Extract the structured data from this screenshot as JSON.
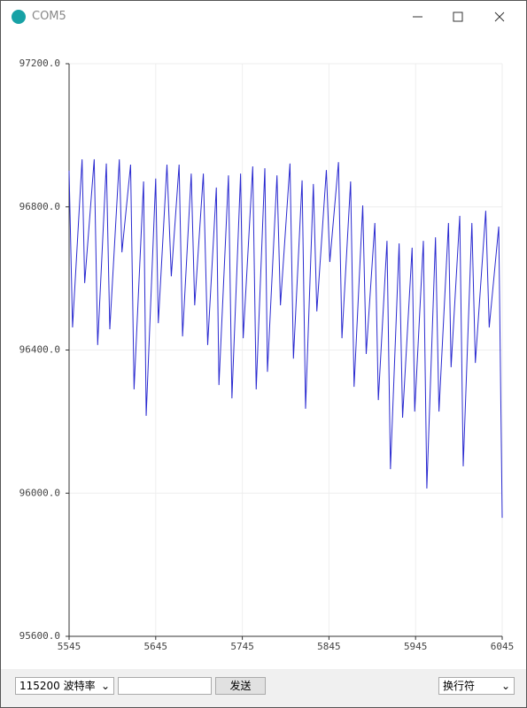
{
  "window": {
    "title": "COM5"
  },
  "chart_data": {
    "type": "line",
    "color": "#2a2ad0",
    "grid": true,
    "xlim": [
      5545,
      6045
    ],
    "xticks": [
      5545,
      5645,
      5745,
      5845,
      5945,
      6045
    ],
    "ylim": [
      95600,
      97200
    ],
    "yticks": [
      {
        "value": 95600,
        "label": "95600.0"
      },
      {
        "value": 96000,
        "label": "96000.0"
      },
      {
        "value": 96400,
        "label": "96400.0"
      },
      {
        "value": 96800,
        "label": "96800.0"
      },
      {
        "value": 97200,
        "label": "97200.0"
      }
    ],
    "x": [
      5545,
      5549,
      5560,
      5563,
      5574,
      5578,
      5588,
      5592,
      5603,
      5606,
      5616,
      5620,
      5631,
      5634,
      5645,
      5648,
      5658,
      5663,
      5672,
      5676,
      5686,
      5690,
      5700,
      5705,
      5715,
      5718,
      5729,
      5733,
      5743,
      5746,
      5757,
      5761,
      5771,
      5774,
      5785,
      5789,
      5800,
      5804,
      5814,
      5818,
      5827,
      5831,
      5842,
      5846,
      5856,
      5860,
      5870,
      5874,
      5884,
      5888,
      5898,
      5902,
      5912,
      5916,
      5926,
      5930,
      5941,
      5944,
      5954,
      5958,
      5968,
      5972,
      5983,
      5986,
      5996,
      6000,
      6010,
      6014,
      6026,
      6030,
      6041,
      6045
    ],
    "values": [
      96901,
      96463,
      96933,
      96587,
      96933,
      96414,
      96921,
      96458,
      96933,
      96673,
      96918,
      96290,
      96871,
      96216,
      96879,
      96475,
      96918,
      96606,
      96918,
      96438,
      96893,
      96525,
      96893,
      96414,
      96854,
      96302,
      96888,
      96265,
      96893,
      96433,
      96913,
      96290,
      96908,
      96339,
      96888,
      96525,
      96921,
      96376,
      96874,
      96236,
      96864,
      96508,
      96903,
      96646,
      96925,
      96433,
      96871,
      96297,
      96804,
      96389,
      96755,
      96260,
      96705,
      96067,
      96698,
      96211,
      96686,
      96228,
      96705,
      96013,
      96715,
      96228,
      96755,
      96352,
      96775,
      96075,
      96755,
      96364,
      96789,
      96463,
      96745,
      95931
    ]
  },
  "controls": {
    "baud": "115200 波特率",
    "send": "发送",
    "line_ending": "换行符"
  }
}
